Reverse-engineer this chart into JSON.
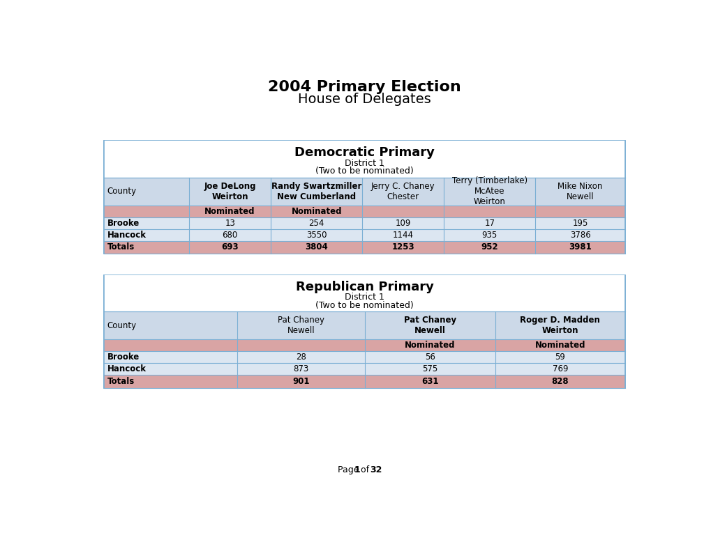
{
  "title_line1": "2004 Primary Election",
  "title_line2": "House of Delegates",
  "dem_title": "Democratic Primary",
  "dem_district": "District 1",
  "dem_two": "(Two to be nominated)",
  "dem_headers": [
    "County",
    "Joe DeLong\nWeirton",
    "Randy Swartzmiller\nNew Cumberland",
    "Jerry C. Chaney\nChester",
    "Terry (Timberlake)\nMcAtee\nWeirton",
    "Mike Nixon\nNewell"
  ],
  "dem_nominated_row": [
    "",
    "Nominated",
    "Nominated",
    "",
    "",
    ""
  ],
  "dem_data": [
    [
      "Brooke",
      "13",
      "254",
      "109",
      "17",
      "195"
    ],
    [
      "Hancock",
      "680",
      "3550",
      "1144",
      "935",
      "3786"
    ],
    [
      "Totals",
      "693",
      "3804",
      "1253",
      "952",
      "3981"
    ]
  ],
  "dem_nominated_cols": [
    1,
    2
  ],
  "dem_bold_header_cols": [
    1,
    2
  ],
  "rep_title": "Republican Primary",
  "rep_district": "District 1",
  "rep_two": "(Two to be nominated)",
  "rep_headers": [
    "County",
    "Pat Chaney\nNewell",
    "Pat Chaney\nNewell",
    "Roger D. Madden\nWeirton"
  ],
  "rep_nominated_row": [
    "",
    "",
    "Nominated",
    "Nominated"
  ],
  "rep_data": [
    [
      "Brooke",
      "28",
      "56",
      "59"
    ],
    [
      "Hancock",
      "873",
      "575",
      "769"
    ],
    [
      "Totals",
      "901",
      "631",
      "828"
    ]
  ],
  "rep_nominated_cols": [
    2,
    3
  ],
  "rep_bold_header_cols": [
    2,
    3
  ],
  "color_header_bg": "#ccd9e8",
  "color_data_bg": "#dce6f1",
  "color_nominated_bg": "#d9a4a4",
  "color_totals_bg": "#d9a4a4",
  "color_white": "#ffffff",
  "color_border": "#7bafd4"
}
